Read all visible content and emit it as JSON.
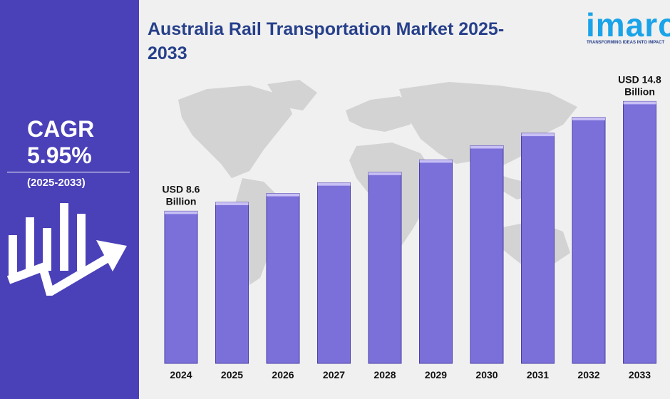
{
  "header": {
    "title_line1": "Australia Rail Transportation Market 2025-",
    "title_line2": "2033"
  },
  "logo": {
    "text": "imarc",
    "tagline": "TRANSFORMING IDEAS INTO IMPACT"
  },
  "sidebar": {
    "cagr_label": "CAGR",
    "cagr_value": "5.95%",
    "cagr_period": "(2025-2033)"
  },
  "colors": {
    "sidebar_bg": "#4a40b8",
    "bar_fill": "#7b6fd9",
    "title": "#27408b",
    "logo": "#1aa3e8"
  },
  "chart_data": {
    "type": "bar",
    "categories": [
      "2024",
      "2025",
      "2026",
      "2027",
      "2028",
      "2029",
      "2030",
      "2031",
      "2032",
      "2033"
    ],
    "values": [
      8.6,
      9.1,
      9.6,
      10.2,
      10.8,
      11.5,
      12.3,
      13.0,
      13.9,
      14.8
    ],
    "unit": "USD Billion",
    "annotations": [
      {
        "category": "2024",
        "line1": "USD 8.6",
        "line2": "Billion"
      },
      {
        "category": "2033",
        "line1": "USD 14.8",
        "line2": "Billion"
      }
    ],
    "ylim": [
      0,
      15.5
    ],
    "grid": false
  }
}
